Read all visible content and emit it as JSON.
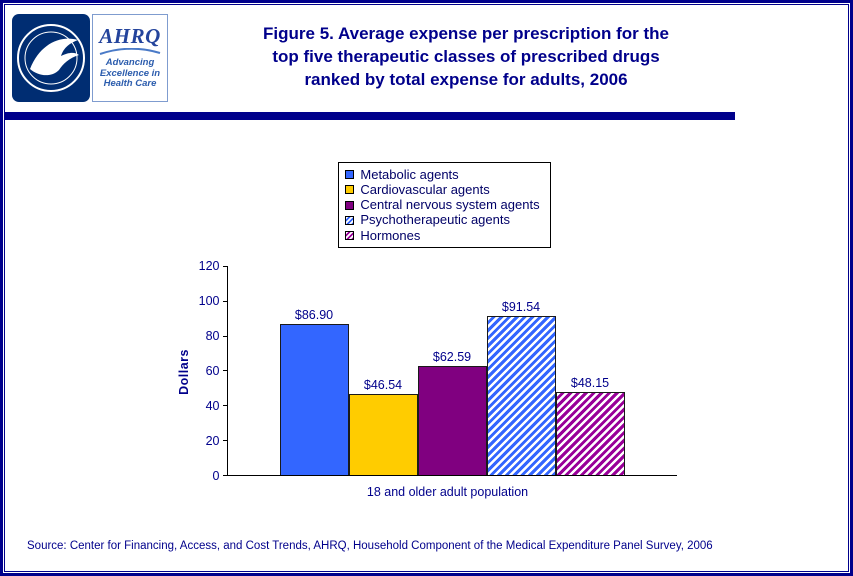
{
  "header": {
    "title_lines": [
      "Figure 5. Average expense per prescription for the",
      "top five therapeutic classes of prescribed drugs",
      "ranked by total expense for adults, 2006"
    ],
    "logos": {
      "ahrq_name": "AHRQ",
      "ahrq_tagline_lines": [
        "Advancing",
        "Excellence in",
        "Health Care"
      ]
    }
  },
  "footer": {
    "source": "Source: Center for Financing, Access, and Cost Trends, AHRQ, Household Component of the Medical Expenditure Panel Survey, 2006"
  },
  "chart_data": {
    "type": "bar",
    "title": "Figure 5. Average expense per prescription for the top five therapeutic classes of prescribed drugs ranked by total expense for adults, 2006",
    "categories": [
      "18 and older adult population"
    ],
    "series": [
      {
        "name": "Metabolic agents",
        "values": [
          86.9
        ],
        "label": "$86.90",
        "color": "#3366ff",
        "pattern": "solid"
      },
      {
        "name": "Cardiovascular agents",
        "values": [
          46.54
        ],
        "label": "$46.54",
        "color": "#ffcc00",
        "pattern": "solid"
      },
      {
        "name": "Central nervous system agents",
        "values": [
          62.59
        ],
        "label": "$62.59",
        "color": "#800080",
        "pattern": "solid"
      },
      {
        "name": "Psychotherapeutic agents",
        "values": [
          91.54
        ],
        "label": "$91.54",
        "color": "#3366ff",
        "pattern": "hatch"
      },
      {
        "name": "Hormones",
        "values": [
          48.15
        ],
        "label": "$48.15",
        "color": "#990099",
        "pattern": "hatch"
      }
    ],
    "xlabel": "18 and older adult population",
    "ylabel": "Dollars",
    "ylim": [
      0,
      120
    ],
    "yticks": [
      0,
      20,
      40,
      60,
      80,
      100,
      120
    ],
    "legend_position": "top",
    "grid": false,
    "colors": {
      "text": "#00008b",
      "axis": "#000000",
      "rule": "#00008b"
    }
  }
}
